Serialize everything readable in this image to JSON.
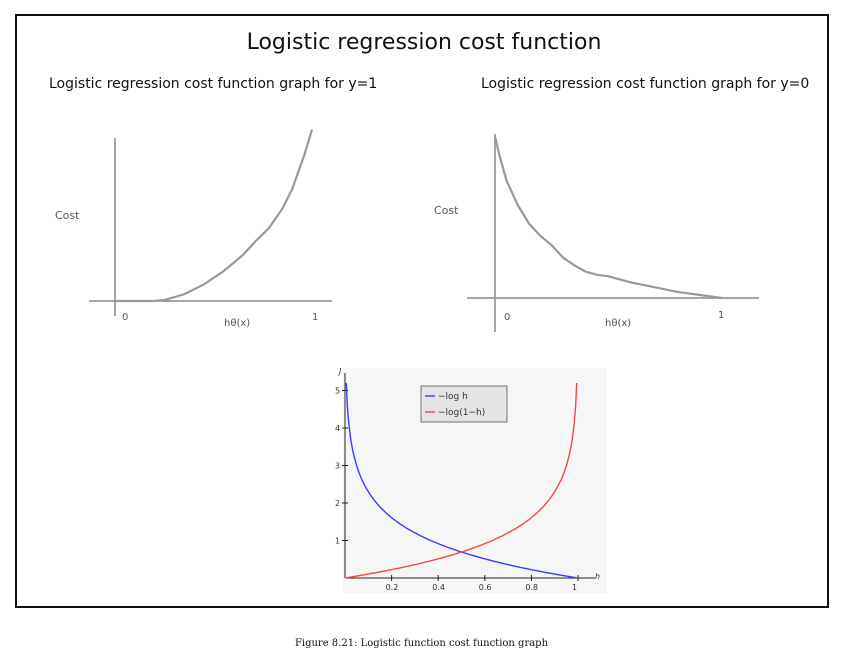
{
  "title": "Logistic regression cost function",
  "caption": "Figure 8.21: Logistic function cost function graph",
  "chart_data": [
    {
      "type": "line",
      "title": "Logistic regression cost function graph for y=1",
      "xlabel": "hθ(x)",
      "ylabel": "Cost",
      "xtick_labels": [
        "0",
        "1"
      ],
      "color": "#999999",
      "xlim": [
        0,
        1
      ],
      "x": [
        0.0,
        0.2,
        0.25,
        0.35,
        0.45,
        0.55,
        0.65,
        0.72,
        0.78,
        0.85,
        0.9,
        0.93,
        0.96,
        0.98,
        1.0
      ],
      "y": [
        0.0,
        0.0,
        0.03,
        0.2,
        0.5,
        0.9,
        1.4,
        1.85,
        2.2,
        2.8,
        3.4,
        3.9,
        4.4,
        4.8,
        5.2
      ]
    },
    {
      "type": "line",
      "title": "Logistic regression cost function graph for y=0",
      "xlabel": "hθ(x)",
      "ylabel": "Cost",
      "xtick_labels": [
        "0",
        "1"
      ],
      "color": "#999999",
      "xlim": [
        0,
        1
      ],
      "x": [
        0.0,
        0.02,
        0.05,
        0.1,
        0.15,
        0.2,
        0.25,
        0.3,
        0.35,
        0.4,
        0.45,
        0.5,
        0.55,
        0.6,
        0.7,
        0.8,
        0.9,
        1.0
      ],
      "y": [
        5.2,
        4.6,
        3.8,
        3.0,
        2.4,
        2.0,
        1.7,
        1.3,
        1.05,
        0.85,
        0.75,
        0.7,
        0.6,
        0.5,
        0.35,
        0.2,
        0.1,
        0.0
      ]
    },
    {
      "type": "line",
      "xlabel": "h",
      "ylabel": "J",
      "xlim": [
        0,
        1
      ],
      "ylim": [
        0,
        5
      ],
      "xticks": [
        0.2,
        0.4,
        0.6,
        0.8,
        1
      ],
      "xtick_labels": [
        "0.2",
        "0.4",
        "0.6",
        "0.8",
        "1"
      ],
      "yticks": [
        1,
        2,
        3,
        4,
        5
      ],
      "ytick_labels": [
        "1",
        "2",
        "3",
        "4",
        "5"
      ],
      "legend": "top-center",
      "series": [
        {
          "name": "−log h",
          "color": "#3b3bff",
          "function": "-log(h)"
        },
        {
          "name": "−log(1−h)",
          "color": "#f24848",
          "function": "-log(1-h)"
        }
      ]
    }
  ]
}
